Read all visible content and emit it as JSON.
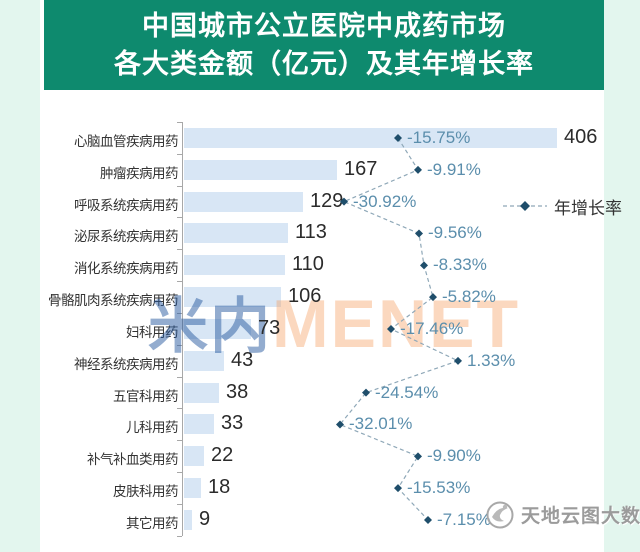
{
  "title": {
    "line1": "中国城市公立医院中成药市场",
    "line2": "各大类金额（亿元）及其年增长率"
  },
  "legend": {
    "growth_label": "年增长率"
  },
  "watermarks": {
    "center_cn": "米内",
    "center_en": "MENET",
    "bottom_right_text": "天地云图大数据",
    "bottom_right_logo": "swirl-bird-logo"
  },
  "colors": {
    "banner_green": "#0E8A6E",
    "page_mint": "#E3F6EE",
    "card_white": "#FFFFFF",
    "bar_blue": "#D8E6F5",
    "growth_text_blue": "#5B8EAC",
    "marker_dark_teal": "#1F4E6B",
    "dash_line_gray": "#8FA8B8",
    "value_text": "#2B2B2B",
    "category_text": "#333333",
    "axis_gray": "#A8A8A8",
    "watermark_orange": "#F49E5E",
    "watermark_blue": "#285AA0",
    "watermark_gray": "#9B9B9B"
  },
  "chart_data": {
    "type": "bar",
    "orientation": "horizontal-bars-with-growth-line",
    "title": "中国城市公立医院中成药市场各大类金额（亿元）及其年增长率",
    "categories": [
      "心脑血管疾病用药",
      "肿瘤疾病用药",
      "呼吸系统疾病用药",
      "泌尿系统疾病用药",
      "消化系统疾病用药",
      "骨骼肌肉系统疾病用药",
      "妇科用药",
      "神经系统疾病用药",
      "五官科用药",
      "儿科用药",
      "补气补血类用药",
      "皮肤科用药",
      "其它用药"
    ],
    "series": [
      {
        "name": "金额（亿元）",
        "type": "bar",
        "values": [
          406,
          167,
          129,
          113,
          110,
          106,
          73,
          43,
          38,
          33,
          22,
          18,
          9
        ]
      },
      {
        "name": "年增长率",
        "type": "line-markers-dashed",
        "unit": "%",
        "values": [
          -15.75,
          -9.91,
          -30.92,
          -9.56,
          -8.33,
          -5.82,
          -17.46,
          1.33,
          -24.54,
          -32.01,
          -9.9,
          -15.53,
          -7.15
        ],
        "labels": [
          "-15.75%",
          "-9.91%",
          "-30.92%",
          "-9.56%",
          "-8.33%",
          "-5.82%",
          "-17.46%",
          "1.33%",
          "-24.54%",
          "-32.01%",
          "-9.90%",
          "-15.53%",
          "-7.15%"
        ]
      }
    ],
    "value_axis_range": [
      0,
      406
    ],
    "growth_visual_range_pct": [
      -32.01,
      1.33
    ],
    "grid": false,
    "legend_entry": "年增长率",
    "legend_position": "right-middle"
  }
}
